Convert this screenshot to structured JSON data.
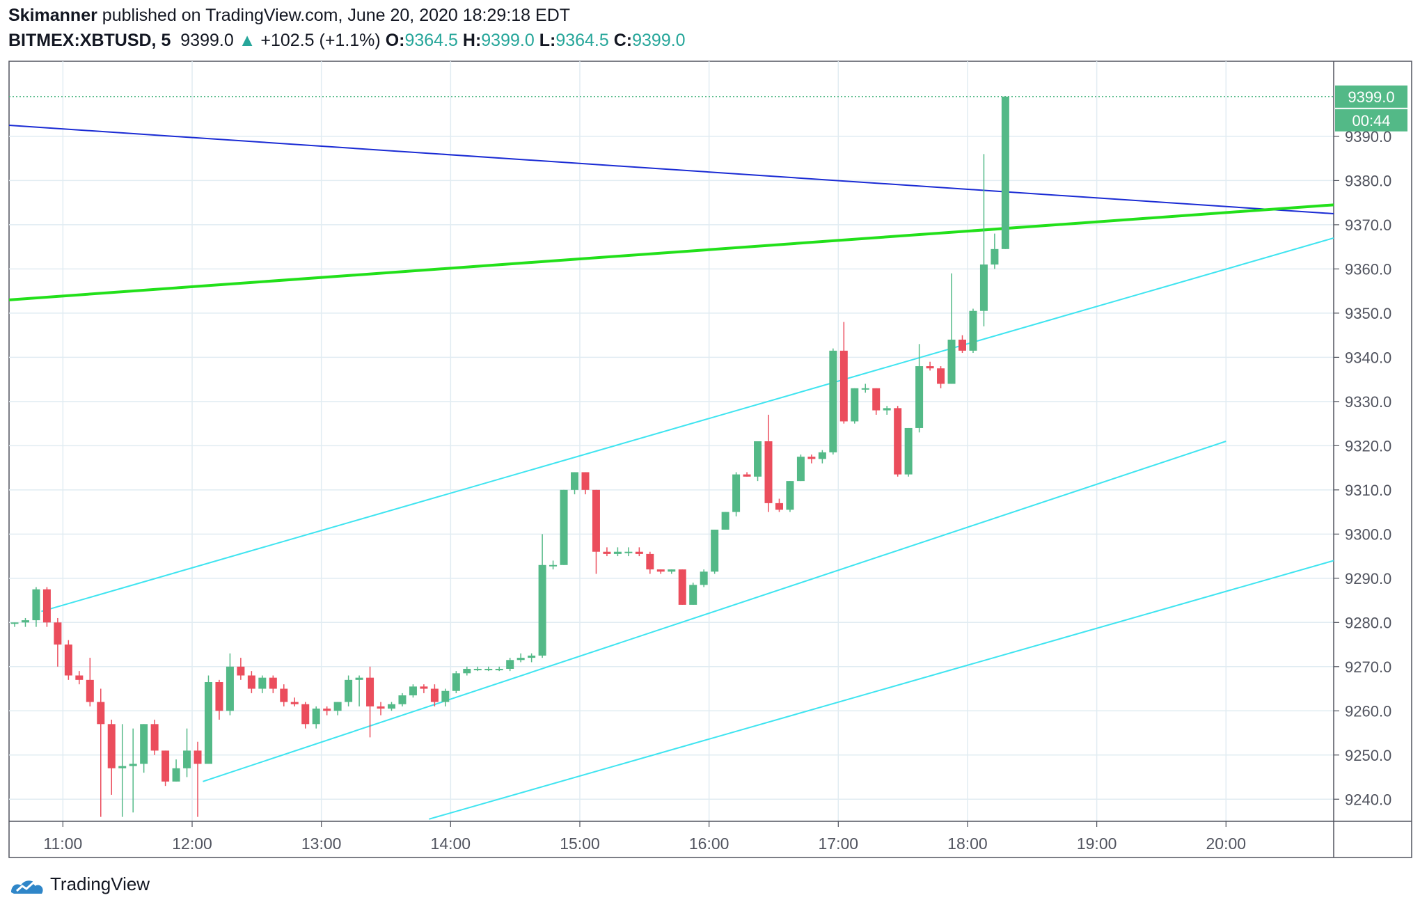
{
  "header": {
    "author": "Skimanner",
    "published_text": "published on TradingView.com, June 20, 2020 18:29:18 EDT",
    "symbol": "BITMEX:XBTUSD, 5",
    "last": "9399.0",
    "change": "+102.5 (+1.1%)",
    "open_label": "O:",
    "open": "9364.5",
    "high_label": "H:",
    "high": "9399.0",
    "low_label": "L:",
    "low": "9364.5",
    "close_label": "C:",
    "close": "9399.0",
    "up_arrow_icon": "triangle-up-icon"
  },
  "footer": {
    "brand": "TradingView",
    "logo_icon": "tradingview-logo-icon"
  },
  "colors": {
    "up": "#53b987",
    "down": "#eb4d5c",
    "grid": "#e1ecf2",
    "trend_blue": "#1a2bd4",
    "trend_green": "#22e01a",
    "channel": "#3fe4f0"
  },
  "chart_data": {
    "type": "candlestick",
    "price_axis": {
      "ticks": [
        "9240.0",
        "9250.0",
        "9260.0",
        "9270.0",
        "9280.0",
        "9290.0",
        "9300.0",
        "9310.0",
        "9320.0",
        "9330.0",
        "9340.0",
        "9350.0",
        "9360.0",
        "9370.0",
        "9380.0",
        "9390.0"
      ],
      "ylim": [
        9235,
        9407
      ]
    },
    "time_axis": {
      "ticks": [
        "11:00",
        "12:00",
        "13:00",
        "14:00",
        "15:00",
        "16:00",
        "17:00",
        "18:00",
        "19:00",
        "20:00"
      ],
      "xlim": [
        "10:35",
        "20:50"
      ]
    },
    "last_price_label": "9399.0",
    "countdown_label": "00:44",
    "candles": [
      {
        "t": "10:35",
        "o": 9280,
        "h": 9280,
        "l": 9279,
        "c": 9280
      },
      {
        "t": "10:40",
        "o": 9280,
        "h": 9281,
        "l": 9279,
        "c": 9280.5
      },
      {
        "t": "10:45",
        "o": 9280.5,
        "h": 9288,
        "l": 9279,
        "c": 9287.5
      },
      {
        "t": "10:50",
        "o": 9287.5,
        "h": 9288,
        "l": 9279,
        "c": 9280
      },
      {
        "t": "10:55",
        "o": 9280,
        "h": 9281,
        "l": 9270,
        "c": 9275
      },
      {
        "t": "11:00",
        "o": 9275,
        "h": 9276,
        "l": 9267,
        "c": 9268
      },
      {
        "t": "11:05",
        "o": 9268,
        "h": 9269,
        "l": 9266,
        "c": 9267
      },
      {
        "t": "11:10",
        "o": 9267,
        "h": 9272,
        "l": 9261,
        "c": 9262
      },
      {
        "t": "11:15",
        "o": 9262,
        "h": 9265,
        "l": 9236,
        "c": 9257
      },
      {
        "t": "11:20",
        "o": 9257,
        "h": 9258,
        "l": 9241,
        "c": 9247
      },
      {
        "t": "11:25",
        "o": 9247,
        "h": 9257,
        "l": 9236,
        "c": 9247.5
      },
      {
        "t": "11:30",
        "o": 9247.5,
        "h": 9256,
        "l": 9237,
        "c": 9248
      },
      {
        "t": "11:35",
        "o": 9248,
        "h": 9257,
        "l": 9246,
        "c": 9257
      },
      {
        "t": "11:40",
        "o": 9257,
        "h": 9258,
        "l": 9250,
        "c": 9251
      },
      {
        "t": "11:45",
        "o": 9251,
        "h": 9251,
        "l": 9243,
        "c": 9244
      },
      {
        "t": "11:50",
        "o": 9244,
        "h": 9249,
        "l": 9244,
        "c": 9247
      },
      {
        "t": "11:55",
        "o": 9247,
        "h": 9256,
        "l": 9245,
        "c": 9251
      },
      {
        "t": "12:00",
        "o": 9251,
        "h": 9253,
        "l": 9236,
        "c": 9248
      },
      {
        "t": "12:05",
        "o": 9248,
        "h": 9268,
        "l": 9248,
        "c": 9266.5
      },
      {
        "t": "12:10",
        "o": 9266.5,
        "h": 9267,
        "l": 9258,
        "c": 9260
      },
      {
        "t": "12:15",
        "o": 9260,
        "h": 9273,
        "l": 9259,
        "c": 9270
      },
      {
        "t": "12:20",
        "o": 9270,
        "h": 9272,
        "l": 9267,
        "c": 9268
      },
      {
        "t": "12:25",
        "o": 9268,
        "h": 9269,
        "l": 9264,
        "c": 9265
      },
      {
        "t": "12:30",
        "o": 9265,
        "h": 9268,
        "l": 9264,
        "c": 9267.5
      },
      {
        "t": "12:35",
        "o": 9267.5,
        "h": 9268,
        "l": 9264,
        "c": 9265
      },
      {
        "t": "12:40",
        "o": 9265,
        "h": 9266,
        "l": 9261,
        "c": 9262
      },
      {
        "t": "12:45",
        "o": 9262,
        "h": 9263,
        "l": 9261,
        "c": 9261.5
      },
      {
        "t": "12:50",
        "o": 9261.5,
        "h": 9262,
        "l": 9256,
        "c": 9257
      },
      {
        "t": "12:55",
        "o": 9257,
        "h": 9261,
        "l": 9256,
        "c": 9260.5
      },
      {
        "t": "13:00",
        "o": 9260.5,
        "h": 9261,
        "l": 9259,
        "c": 9260
      },
      {
        "t": "13:05",
        "o": 9260,
        "h": 9262,
        "l": 9259,
        "c": 9262
      },
      {
        "t": "13:10",
        "o": 9262,
        "h": 9268,
        "l": 9261,
        "c": 9267
      },
      {
        "t": "13:15",
        "o": 9267,
        "h": 9268,
        "l": 9261,
        "c": 9267.5
      },
      {
        "t": "13:20",
        "o": 9267.5,
        "h": 9270,
        "l": 9254,
        "c": 9261
      },
      {
        "t": "13:25",
        "o": 9261,
        "h": 9262,
        "l": 9259,
        "c": 9260.5
      },
      {
        "t": "13:30",
        "o": 9260.5,
        "h": 9262,
        "l": 9260,
        "c": 9261.5
      },
      {
        "t": "13:35",
        "o": 9261.5,
        "h": 9264,
        "l": 9261,
        "c": 9263.5
      },
      {
        "t": "13:40",
        "o": 9263.5,
        "h": 9266,
        "l": 9263,
        "c": 9265.5
      },
      {
        "t": "13:45",
        "o": 9265.5,
        "h": 9266,
        "l": 9264,
        "c": 9265
      },
      {
        "t": "13:50",
        "o": 9265,
        "h": 9266,
        "l": 9261,
        "c": 9262
      },
      {
        "t": "13:55",
        "o": 9262,
        "h": 9265,
        "l": 9261,
        "c": 9264.5
      },
      {
        "t": "14:00",
        "o": 9264.5,
        "h": 9269,
        "l": 9264,
        "c": 9268.5
      },
      {
        "t": "14:05",
        "o": 9268.5,
        "h": 9270,
        "l": 9268,
        "c": 9269.5
      },
      {
        "t": "14:10",
        "o": 9269.5,
        "h": 9270,
        "l": 9269,
        "c": 9269.5
      },
      {
        "t": "14:15",
        "o": 9269.5,
        "h": 9270,
        "l": 9269,
        "c": 9269.5
      },
      {
        "t": "14:20",
        "o": 9269.5,
        "h": 9270,
        "l": 9269,
        "c": 9269.5
      },
      {
        "t": "14:25",
        "o": 9269.5,
        "h": 9272,
        "l": 9269,
        "c": 9271.5
      },
      {
        "t": "14:30",
        "o": 9271.5,
        "h": 9273,
        "l": 9271,
        "c": 9272
      },
      {
        "t": "14:35",
        "o": 9272,
        "h": 9273,
        "l": 9271,
        "c": 9272.5
      },
      {
        "t": "14:40",
        "o": 9272.5,
        "h": 9300,
        "l": 9272,
        "c": 9293
      },
      {
        "t": "14:45",
        "o": 9293,
        "h": 9294,
        "l": 9292,
        "c": 9293
      },
      {
        "t": "14:50",
        "o": 9293,
        "h": 9310,
        "l": 9293,
        "c": 9310
      },
      {
        "t": "14:55",
        "o": 9310,
        "h": 9314,
        "l": 9309,
        "c": 9314
      },
      {
        "t": "15:00",
        "o": 9314,
        "h": 9314,
        "l": 9309,
        "c": 9310
      },
      {
        "t": "15:05",
        "o": 9310,
        "h": 9310,
        "l": 9291,
        "c": 9296
      },
      {
        "t": "15:10",
        "o": 9296,
        "h": 9297,
        "l": 9295,
        "c": 9295.5
      },
      {
        "t": "15:15",
        "o": 9295.5,
        "h": 9297,
        "l": 9295,
        "c": 9296
      },
      {
        "t": "15:20",
        "o": 9296,
        "h": 9297,
        "l": 9295,
        "c": 9296
      },
      {
        "t": "15:25",
        "o": 9296,
        "h": 9297,
        "l": 9295,
        "c": 9295.5
      },
      {
        "t": "15:30",
        "o": 9295.5,
        "h": 9296,
        "l": 9291,
        "c": 9292
      },
      {
        "t": "15:35",
        "o": 9292,
        "h": 9292,
        "l": 9291,
        "c": 9291.5
      },
      {
        "t": "15:40",
        "o": 9291.5,
        "h": 9292,
        "l": 9291,
        "c": 9292
      },
      {
        "t": "15:45",
        "o": 9292,
        "h": 9292,
        "l": 9284,
        "c": 9284
      },
      {
        "t": "15:50",
        "o": 9284,
        "h": 9289,
        "l": 9284,
        "c": 9288.5
      },
      {
        "t": "15:55",
        "o": 9288.5,
        "h": 9292,
        "l": 9288,
        "c": 9291.5
      },
      {
        "t": "16:00",
        "o": 9291.5,
        "h": 9301,
        "l": 9291,
        "c": 9301
      },
      {
        "t": "16:05",
        "o": 9301,
        "h": 9305,
        "l": 9301,
        "c": 9305
      },
      {
        "t": "16:10",
        "o": 9305,
        "h": 9314,
        "l": 9304,
        "c": 9313.5
      },
      {
        "t": "16:15",
        "o": 9313.5,
        "h": 9314,
        "l": 9313,
        "c": 9313
      },
      {
        "t": "16:20",
        "o": 9313,
        "h": 9321,
        "l": 9312,
        "c": 9321
      },
      {
        "t": "16:25",
        "o": 9321,
        "h": 9327,
        "l": 9305,
        "c": 9307
      },
      {
        "t": "16:30",
        "o": 9307,
        "h": 9308,
        "l": 9305,
        "c": 9305.5
      },
      {
        "t": "16:35",
        "o": 9305.5,
        "h": 9312,
        "l": 9305,
        "c": 9312
      },
      {
        "t": "16:40",
        "o": 9312,
        "h": 9318,
        "l": 9312,
        "c": 9317.5
      },
      {
        "t": "16:45",
        "o": 9317.5,
        "h": 9318,
        "l": 9316,
        "c": 9317
      },
      {
        "t": "16:50",
        "o": 9317,
        "h": 9319,
        "l": 9316,
        "c": 9318.5
      },
      {
        "t": "16:55",
        "o": 9318.5,
        "h": 9342,
        "l": 9318,
        "c": 9341.5
      },
      {
        "t": "17:00",
        "o": 9341.5,
        "h": 9348,
        "l": 9325,
        "c": 9325.5
      },
      {
        "t": "17:05",
        "o": 9325.5,
        "h": 9333,
        "l": 9325,
        "c": 9333
      },
      {
        "t": "17:10",
        "o": 9333,
        "h": 9334,
        "l": 9332,
        "c": 9333
      },
      {
        "t": "17:15",
        "o": 9333,
        "h": 9333,
        "l": 9327,
        "c": 9328
      },
      {
        "t": "17:20",
        "o": 9328,
        "h": 9329,
        "l": 9327,
        "c": 9328.5
      },
      {
        "t": "17:25",
        "o": 9328.5,
        "h": 9329,
        "l": 9313,
        "c": 9313.5
      },
      {
        "t": "17:30",
        "o": 9313.5,
        "h": 9324,
        "l": 9313,
        "c": 9324
      },
      {
        "t": "17:35",
        "o": 9324,
        "h": 9343,
        "l": 9323,
        "c": 9338
      },
      {
        "t": "17:40",
        "o": 9338,
        "h": 9339,
        "l": 9337,
        "c": 9337.5
      },
      {
        "t": "17:45",
        "o": 9337.5,
        "h": 9338,
        "l": 9333,
        "c": 9334
      },
      {
        "t": "17:50",
        "o": 9334,
        "h": 9359,
        "l": 9334,
        "c": 9344
      },
      {
        "t": "17:55",
        "o": 9344,
        "h": 9345,
        "l": 9341,
        "c": 9341.5
      },
      {
        "t": "18:00",
        "o": 9341.5,
        "h": 9351,
        "l": 9341,
        "c": 9350.5
      },
      {
        "t": "18:05",
        "o": 9350.5,
        "h": 9386,
        "l": 9347,
        "c": 9361
      },
      {
        "t": "18:10",
        "o": 9361,
        "h": 9368,
        "l": 9360,
        "c": 9364.5
      },
      {
        "t": "18:15",
        "o": 9364.5,
        "h": 9399,
        "l": 9364.5,
        "c": 9399
      }
    ],
    "trendlines": [
      {
        "name": "blue-descending",
        "color": "#1a2bd4",
        "from": [
          "10:35",
          9392.5
        ],
        "to": [
          "20:50",
          9372.5
        ]
      },
      {
        "name": "green-rising",
        "color": "#22e01a",
        "from": [
          "10:35",
          9353
        ],
        "to": [
          "20:50",
          9374.5
        ]
      },
      {
        "name": "channel-upper",
        "color": "#3fe4f0",
        "from": [
          "10:50",
          9282.5
        ],
        "to": [
          "20:50",
          9367
        ]
      },
      {
        "name": "channel-middle",
        "color": "#3fe4f0",
        "from": [
          "12:05",
          9244
        ],
        "to": [
          "20:00",
          9321
        ]
      },
      {
        "name": "channel-lower",
        "color": "#3fe4f0",
        "from": [
          "13:50",
          9235.5
        ],
        "to": [
          "20:50",
          9294
        ]
      }
    ]
  }
}
